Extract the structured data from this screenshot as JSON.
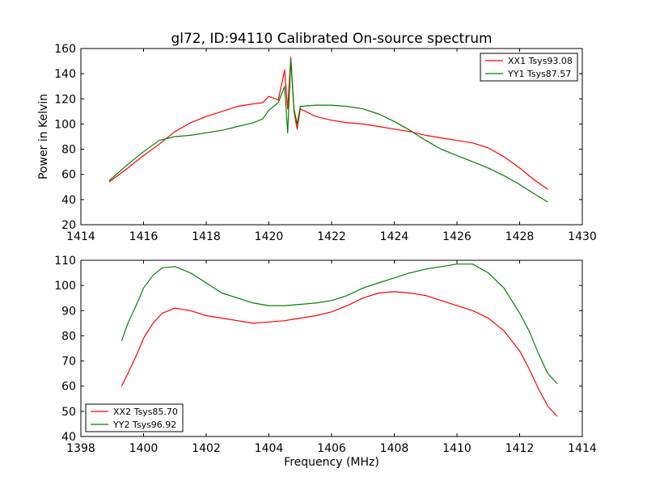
{
  "chart_data": [
    {
      "type": "line",
      "title": "gl72, ID:94110 Calibrated On-source spectrum",
      "xlabel": "",
      "ylabel": "Power in Kelvin",
      "xlim": [
        1414,
        1430
      ],
      "ylim": [
        20,
        160
      ],
      "xticks": [
        1414,
        1416,
        1418,
        1420,
        1422,
        1424,
        1426,
        1428,
        1430
      ],
      "yticks": [
        20,
        40,
        60,
        80,
        100,
        120,
        140,
        160
      ],
      "legend_position": "top-right",
      "series": [
        {
          "name": "XX1 Tsys93.08",
          "color": "#ff0000",
          "x": [
            1414.9,
            1415.5,
            1416.0,
            1416.5,
            1417.0,
            1417.5,
            1418.0,
            1418.5,
            1419.0,
            1419.5,
            1419.8,
            1420.0,
            1420.3,
            1420.5,
            1420.6,
            1420.7,
            1420.8,
            1420.9,
            1421.0,
            1421.5,
            1422.0,
            1422.5,
            1423.0,
            1423.5,
            1424.0,
            1424.5,
            1425.0,
            1425.5,
            1426.0,
            1426.5,
            1427.0,
            1427.5,
            1428.0,
            1428.5,
            1428.9
          ],
          "y": [
            54,
            65,
            75,
            84,
            94,
            101,
            106,
            110,
            114,
            116,
            117,
            122,
            119,
            143,
            112,
            153,
            110,
            96,
            112,
            106,
            103,
            101,
            100,
            98,
            96,
            94,
            91,
            89,
            87,
            85,
            81,
            74,
            65,
            55,
            48
          ]
        },
        {
          "name": "YY1 Tsys87.57",
          "color": "#008000",
          "x": [
            1414.9,
            1415.5,
            1416.0,
            1416.5,
            1417.0,
            1417.5,
            1418.0,
            1418.5,
            1419.0,
            1419.5,
            1419.8,
            1420.0,
            1420.3,
            1420.5,
            1420.6,
            1420.7,
            1420.8,
            1420.9,
            1421.0,
            1421.5,
            1422.0,
            1422.5,
            1423.0,
            1423.5,
            1424.0,
            1424.5,
            1425.0,
            1425.5,
            1426.0,
            1426.5,
            1427.0,
            1427.5,
            1428.0,
            1428.5,
            1428.9
          ],
          "y": [
            55,
            68,
            78,
            87,
            90,
            91,
            93,
            95,
            98,
            101,
            104,
            111,
            117,
            130,
            93,
            151,
            112,
            100,
            114,
            115,
            115,
            114,
            112,
            108,
            102,
            95,
            87,
            80,
            75,
            70,
            65,
            59,
            52,
            44,
            38
          ]
        }
      ]
    },
    {
      "type": "line",
      "title": "",
      "xlabel": "Frequency (MHz)",
      "ylabel": "",
      "xlim": [
        1398,
        1414
      ],
      "ylim": [
        40,
        110
      ],
      "xticks": [
        1398,
        1400,
        1402,
        1404,
        1406,
        1408,
        1410,
        1412,
        1414
      ],
      "yticks": [
        40,
        50,
        60,
        70,
        80,
        90,
        100,
        110
      ],
      "legend_position": "bottom-left",
      "series": [
        {
          "name": "XX2 Tsys85.70",
          "color": "#ff0000",
          "x": [
            1399.3,
            1399.5,
            1399.8,
            1400.0,
            1400.3,
            1400.6,
            1401.0,
            1401.5,
            1402.0,
            1402.5,
            1403.0,
            1403.5,
            1404.0,
            1404.5,
            1405.0,
            1405.5,
            1406.0,
            1406.5,
            1407.0,
            1407.5,
            1408.0,
            1408.5,
            1409.0,
            1409.5,
            1410.0,
            1410.5,
            1411.0,
            1411.5,
            1412.0,
            1412.3,
            1412.6,
            1412.9,
            1413.2
          ],
          "y": [
            60,
            65,
            73,
            79,
            85,
            89,
            91,
            90,
            88,
            87,
            86,
            85,
            85.5,
            86,
            87,
            88,
            89.5,
            92,
            95,
            97,
            97.5,
            97,
            96,
            94,
            92,
            90,
            87,
            82,
            74,
            67,
            59,
            52,
            48
          ]
        },
        {
          "name": "YY2 Tsys96.92",
          "color": "#008000",
          "x": [
            1399.3,
            1399.5,
            1399.8,
            1400.0,
            1400.3,
            1400.6,
            1401.0,
            1401.5,
            1402.0,
            1402.5,
            1403.0,
            1403.5,
            1404.0,
            1404.5,
            1405.0,
            1405.5,
            1406.0,
            1406.5,
            1407.0,
            1407.5,
            1408.0,
            1408.5,
            1409.0,
            1409.5,
            1410.0,
            1410.5,
            1411.0,
            1411.5,
            1412.0,
            1412.3,
            1412.6,
            1412.9,
            1413.2
          ],
          "y": [
            78,
            85,
            93,
            99,
            104,
            107,
            107.5,
            105,
            101,
            97,
            95,
            93,
            92,
            92,
            92.5,
            93,
            94,
            96,
            99,
            101,
            103,
            105,
            106.5,
            107.5,
            108.5,
            108.5,
            105,
            99,
            89,
            82,
            73,
            65,
            61
          ]
        }
      ]
    }
  ]
}
